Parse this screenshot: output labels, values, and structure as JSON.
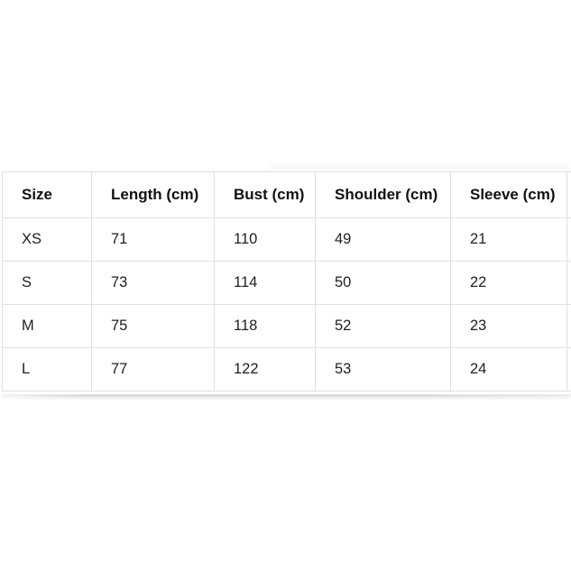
{
  "page": {
    "background_color": "#ffffff"
  },
  "size_chart": {
    "columns": [
      "Size",
      "Length (cm)",
      "Bust (cm)",
      "Shoulder (cm)",
      "Sleeve (cm)"
    ],
    "rows": [
      [
        "XS",
        "71",
        "110",
        "49",
        "21"
      ],
      [
        "S",
        "73",
        "114",
        "50",
        "22"
      ],
      [
        "M",
        "75",
        "118",
        "52",
        "23"
      ],
      [
        "L",
        "77",
        "122",
        "53",
        "24"
      ]
    ],
    "colors": {
      "border": "#e0e0e0",
      "header_text": "#111111",
      "cell_text": "#1f1f1f",
      "bottom_edge_shadow": "#8c8c8c"
    }
  }
}
